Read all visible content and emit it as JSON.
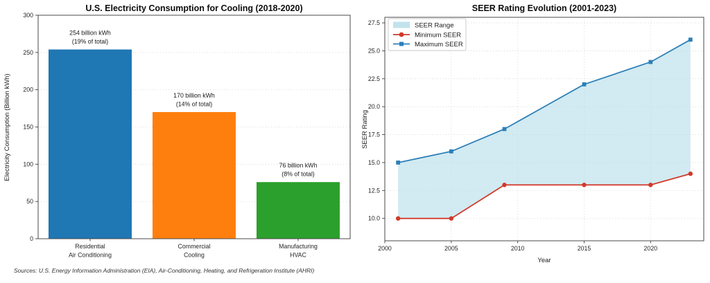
{
  "source_note": "Sources: U.S. Energy Information Administration (EIA), Air-Conditioning, Heating, and Refrigeration Institute (AHRI)",
  "colors": {
    "bar_blue": "#1f77b4",
    "bar_orange": "#ff7f0e",
    "bar_green": "#2ca02c",
    "min_seer_red": "#d1392a",
    "max_seer_blue": "#2c7fb8",
    "range_fill_lightblue": "#add8e6"
  },
  "chart_data": [
    {
      "type": "bar",
      "title": "U.S. Electricity Consumption for Cooling (2018-2020)",
      "categories": [
        "Residential\nAir Conditioning",
        "Commercial\nCooling",
        "Manufacturing\nHVAC"
      ],
      "values": [
        254,
        170,
        76
      ],
      "bar_colors": [
        "#1f77b4",
        "#ff7f0e",
        "#2ca02c"
      ],
      "annotations": [
        "254 billion kWh\n(19% of total)",
        "170 billion kWh\n(14% of total)",
        "76 billion kWh\n(8% of total)"
      ],
      "xlabel": "",
      "ylabel": "Electricity Consumption (Billion kWh)",
      "ylim": [
        0,
        300
      ],
      "yticks": [
        0,
        50,
        100,
        150,
        200,
        250,
        300
      ],
      "grid": "horizontal-dotted",
      "legend_position": "none"
    },
    {
      "type": "line",
      "title": "SEER Rating Evolution (2001-2023)",
      "x": [
        2001,
        2005,
        2009,
        2015,
        2020,
        2023
      ],
      "series": [
        {
          "name": "Minimum SEER",
          "values": [
            10,
            10,
            13,
            13,
            13,
            14
          ],
          "color": "#d1392a",
          "marker": "circle"
        },
        {
          "name": "Maximum SEER",
          "values": [
            15,
            16,
            18,
            22,
            24,
            26
          ],
          "color": "#2c7fb8",
          "marker": "square"
        }
      ],
      "range_fill": {
        "name": "SEER Range",
        "color": "#add8e6",
        "opacity": 0.55
      },
      "xlabel": "Year",
      "ylabel": "SEER Rating",
      "xlim": [
        2000,
        2024
      ],
      "ylim": [
        8,
        28
      ],
      "xticks": [
        2000,
        2005,
        2010,
        2015,
        2020
      ],
      "yticks": [
        10.0,
        12.5,
        15.0,
        17.5,
        20.0,
        22.5,
        25.0,
        27.5
      ],
      "legend": [
        "SEER Range",
        "Minimum SEER",
        "Maximum SEER"
      ],
      "legend_position": "upper-left",
      "grid": "both-dotted"
    }
  ]
}
